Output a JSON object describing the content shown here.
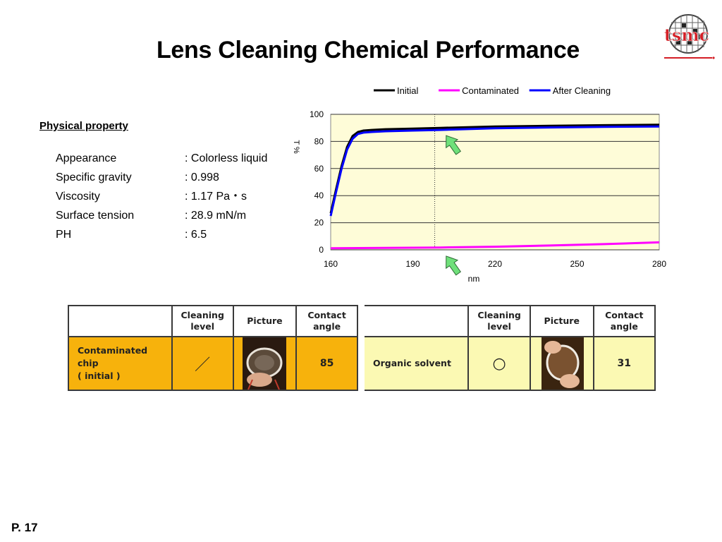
{
  "slide": {
    "title": "Lens Cleaning Chemical Performance",
    "page": "P. 17",
    "logo_text": "tsmc"
  },
  "physical": {
    "heading": "Physical property",
    "rows": [
      {
        "name": "Appearance",
        "value": ": Colorless liquid"
      },
      {
        "name": "Specific gravity",
        "value": ": 0.998"
      },
      {
        "name": "Viscosity",
        "value": ": 1.17 Pa・s"
      },
      {
        "name": "Surface tension",
        "value": ": 28.9 mN/m"
      },
      {
        "name": "PH",
        "value": ": 6.5"
      }
    ]
  },
  "chart_data": {
    "type": "line",
    "xlabel": "nm",
    "ylabel": "T %",
    "xlim": [
      160,
      280
    ],
    "ylim": [
      0,
      100
    ],
    "xticks": [
      160,
      190,
      220,
      250,
      280
    ],
    "yticks": [
      0,
      20,
      40,
      60,
      80,
      100
    ],
    "legend_position": "top",
    "grid": true,
    "plot_background": "#fefcd8",
    "marker_line_x": 198,
    "arrows_at_x": 203,
    "series": [
      {
        "name": "Initial",
        "color": "#000000",
        "x": [
          160,
          162,
          164,
          166,
          168,
          170,
          172,
          175,
          180,
          190,
          200,
          220,
          240,
          260,
          280
        ],
        "y": [
          27,
          45,
          62,
          76,
          84,
          87,
          88,
          88.5,
          89,
          89.5,
          90,
          91,
          91.5,
          92,
          92.3
        ]
      },
      {
        "name": "Contaminated",
        "color": "#ff00ff",
        "x": [
          160,
          180,
          200,
          220,
          240,
          260,
          280
        ],
        "y": [
          1.2,
          1.4,
          1.7,
          2.3,
          3.2,
          4.2,
          5.5
        ]
      },
      {
        "name": "After Cleaning",
        "color": "#0000ff",
        "x": [
          160,
          162,
          164,
          166,
          168,
          170,
          172,
          175,
          180,
          190,
          200,
          220,
          240,
          260,
          280
        ],
        "y": [
          25,
          43,
          60,
          74,
          82,
          85.5,
          86.5,
          87,
          87.5,
          88,
          88.5,
          89.7,
          90.3,
          90.8,
          91
        ]
      }
    ]
  },
  "table_left": {
    "headers": [
      "",
      "Cleaning\nlevel",
      "Picture",
      "Contact\nangle"
    ],
    "row": {
      "label": "Contaminated chip\n( initial )",
      "level": "／",
      "angle": "85"
    }
  },
  "table_right": {
    "headers": [
      "",
      "Cleaning\nlevel",
      "Picture",
      "Contact\nangle"
    ],
    "row": {
      "label": "Organic solvent",
      "level": "○",
      "angle": "31"
    }
  }
}
